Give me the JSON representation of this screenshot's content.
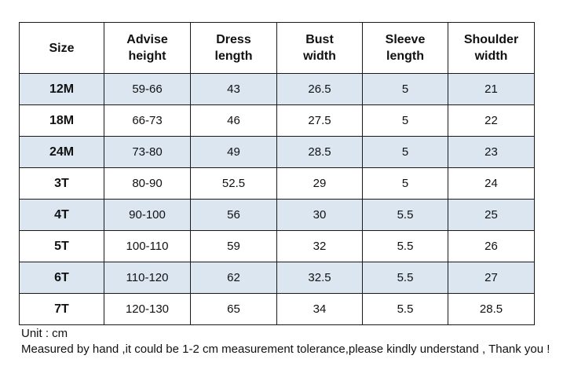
{
  "table": {
    "headers": [
      {
        "line1": "Size",
        "line2": ""
      },
      {
        "line1": "Advise",
        "line2": "height"
      },
      {
        "line1": "Dress",
        "line2": "length"
      },
      {
        "line1": "Bust",
        "line2": "width"
      },
      {
        "line1": "Sleeve",
        "line2": "length"
      },
      {
        "line1": "Shoulder",
        "line2": "width"
      }
    ],
    "rows": [
      [
        "12M",
        "59-66",
        "43",
        "26.5",
        "5",
        "21"
      ],
      [
        "18M",
        "66-73",
        "46",
        "27.5",
        "5",
        "22"
      ],
      [
        "24M",
        "73-80",
        "49",
        "28.5",
        "5",
        "23"
      ],
      [
        "3T",
        "80-90",
        "52.5",
        "29",
        "5",
        "24"
      ],
      [
        "4T",
        "90-100",
        "56",
        "30",
        "5.5",
        "25"
      ],
      [
        "5T",
        "100-110",
        "59",
        "32",
        "5.5",
        "26"
      ],
      [
        "6T",
        "110-120",
        "62",
        "32.5",
        "5.5",
        "27"
      ],
      [
        "7T",
        "120-130",
        "65",
        "34",
        "5.5",
        "28.5"
      ]
    ]
  },
  "notes": {
    "unit": "Unit : cm",
    "tolerance": "Measured by hand ,it could be 1-2 cm measurement tolerance,please kindly understand , Thank you !"
  },
  "colors": {
    "shaded_row": "#dce6f1",
    "border": "#1a1a1a"
  }
}
